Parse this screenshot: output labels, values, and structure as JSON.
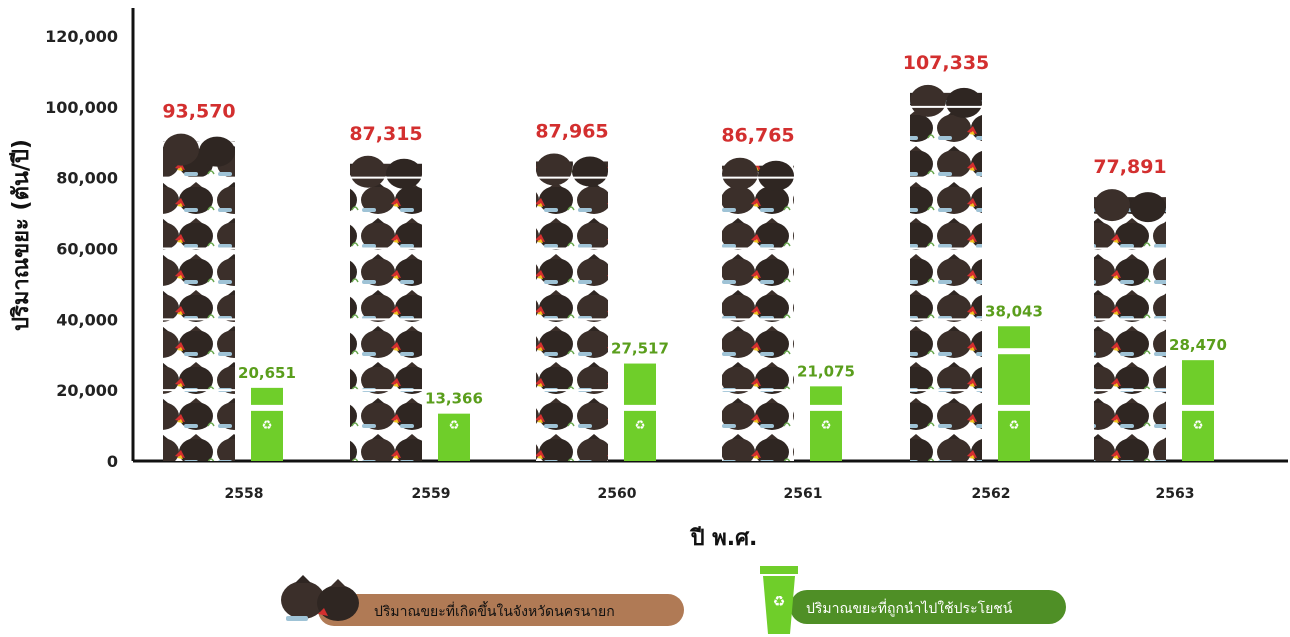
{
  "chart_data": {
    "type": "bar",
    "xlabel": "ปี พ.ศ.",
    "ylabel": "ปริมาณขยะ (ตัน/ปี)",
    "ylim": [
      0,
      120000
    ],
    "yticks": [
      "0",
      "20,000",
      "40,000",
      "60,000",
      "80,000",
      "100,000",
      "120,000"
    ],
    "categories": [
      "2558",
      "2559",
      "2560",
      "2561",
      "2562",
      "2563"
    ],
    "grid": false,
    "legend_position": "bottom",
    "series": [
      {
        "name": "ปริมาณขยะที่เกิดขึ้นในจังหวัดนครนายก",
        "values": [
          93570,
          87315,
          87965,
          86765,
          107335,
          77891
        ],
        "labels": [
          "93,570",
          "87,315",
          "87,965",
          "86,765",
          "107,335",
          "77,891"
        ],
        "color": "#d32f2f",
        "icon": "garbage-bag-icon"
      },
      {
        "name": "ปริมาณขยะที่ถูกนำไปใช้ประโยชน์",
        "values": [
          20651,
          13366,
          27517,
          21075,
          38043,
          28470
        ],
        "labels": [
          "20,651",
          "13,366",
          "27,517",
          "21,075",
          "38,043",
          "28,470"
        ],
        "color": "#5a9e1c",
        "icon": "recycle-bin-icon"
      }
    ]
  },
  "colors": {
    "bag": "#3b2f2a",
    "bin": "#6fce2a",
    "legend_bag_bar": "#b07a55",
    "legend_bin_bar": "#4f8f26"
  }
}
